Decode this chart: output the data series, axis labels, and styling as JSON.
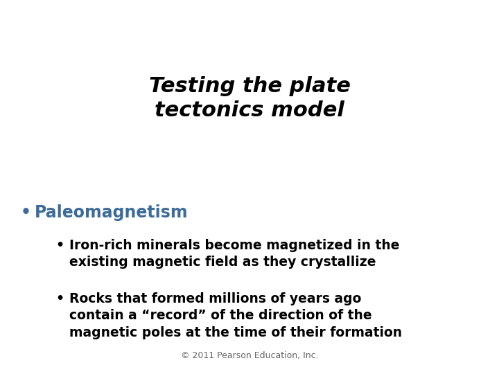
{
  "title_line1": "Testing the plate",
  "title_line2": "tectonics model",
  "title_fontsize": 22,
  "title_color": "#000000",
  "title_style": "italic",
  "title_weight": "bold",
  "bullet1_text": "Paleomagnetism",
  "bullet1_color": "#3D6B9A",
  "bullet1_fontsize": 17,
  "bullet1_weight": "bold",
  "sub_bullet1_line1": "Iron-rich minerals become magnetized in the",
  "sub_bullet1_line2": "existing magnetic field as they crystallize",
  "sub_bullet2_line1": "Rocks that formed millions of years ago",
  "sub_bullet2_line2": "contain a “record” of the direction of the",
  "sub_bullet2_line3": "magnetic poles at the time of their formation",
  "sub_fontsize": 13.5,
  "sub_color": "#000000",
  "sub_weight": "bold",
  "footer": "© 2011 Pearson Education, Inc.",
  "footer_fontsize": 9,
  "footer_color": "#666666",
  "background_color": "#ffffff",
  "fig_width": 7.2,
  "fig_height": 5.4,
  "dpi": 100
}
